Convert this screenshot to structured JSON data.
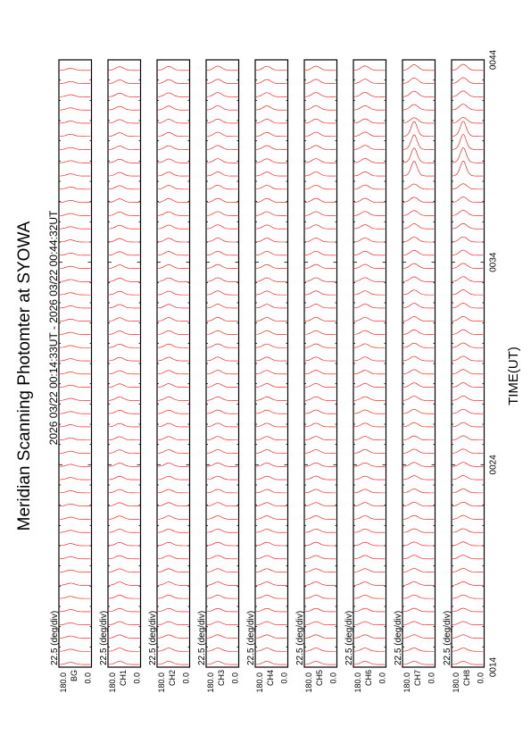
{
  "title": "Meridian Scanning Photomter at SYOWA",
  "time_range": "2026 03/22 00:14:33UT - 2026 03/22 00:44:32UT",
  "xlabel": "TIME(UT)",
  "colors": {
    "trace": "#ff0000",
    "frame": "#000000",
    "background": "#ffffff"
  },
  "chart_data": {
    "type": "line",
    "title": "Meridian Scanning Photomter at SYOWA",
    "xlabel": "TIME(UT)",
    "x_ticks": [
      "0014",
      "0024",
      "0034",
      "0044"
    ],
    "y_scale_label": "22.5 (deg/div)",
    "y_range_labels": [
      "180.0",
      "0.0"
    ],
    "panels": [
      {
        "channel": "BG",
        "traces": 46,
        "aurora_amplitude": 0.0
      },
      {
        "channel": "CH1",
        "traces": 46,
        "aurora_amplitude": 0.15
      },
      {
        "channel": "CH2",
        "traces": 46,
        "aurora_amplitude": 0.25
      },
      {
        "channel": "CH3",
        "traces": 46,
        "aurora_amplitude": 0.35
      },
      {
        "channel": "CH4",
        "traces": 46,
        "aurora_amplitude": 0.3
      },
      {
        "channel": "CH5",
        "traces": 46,
        "aurora_amplitude": 0.35
      },
      {
        "channel": "CH6",
        "traces": 46,
        "aurora_amplitude": 0.4
      },
      {
        "channel": "CH7",
        "traces": 46,
        "aurora_amplitude": 0.8
      },
      {
        "channel": "CH8",
        "traces": 46,
        "aurora_amplitude": 0.9
      }
    ]
  }
}
